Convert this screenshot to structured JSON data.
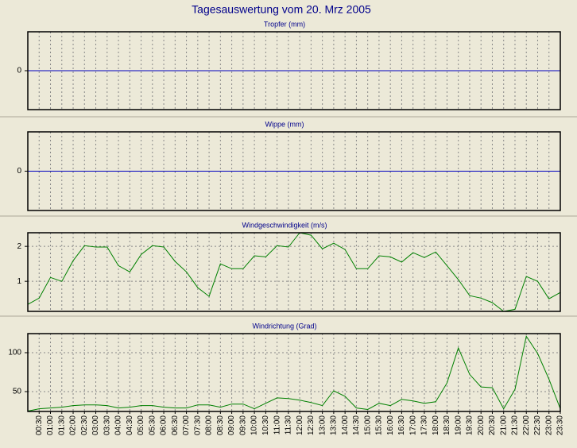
{
  "title": "Tagesauswertung vom 20. Mrz 2005",
  "chart_data": [
    {
      "type": "line",
      "title": "Tropfer (mm)",
      "color": "#0000c0",
      "ylim": [
        -1,
        1
      ],
      "yticks": [
        0
      ],
      "values": [
        0,
        0,
        0,
        0,
        0,
        0,
        0,
        0,
        0,
        0,
        0,
        0,
        0,
        0,
        0,
        0,
        0,
        0,
        0,
        0,
        0,
        0,
        0,
        0,
        0,
        0,
        0,
        0,
        0,
        0,
        0,
        0,
        0,
        0,
        0,
        0,
        0,
        0,
        0,
        0,
        0,
        0,
        0,
        0,
        0,
        0,
        0,
        0
      ]
    },
    {
      "type": "line",
      "title": "Wippe (mm)",
      "color": "#0000c0",
      "ylim": [
        -1,
        1
      ],
      "yticks": [
        0
      ],
      "values": [
        0,
        0,
        0,
        0,
        0,
        0,
        0,
        0,
        0,
        0,
        0,
        0,
        0,
        0,
        0,
        0,
        0,
        0,
        0,
        0,
        0,
        0,
        0,
        0,
        0,
        0,
        0,
        0,
        0,
        0,
        0,
        0,
        0,
        0,
        0,
        0,
        0,
        0,
        0,
        0,
        0,
        0,
        0,
        0,
        0,
        0,
        0,
        0
      ]
    },
    {
      "type": "line",
      "title": "Windgeschwindigkeit (m/s)",
      "color": "#008000",
      "ylim": [
        0.14,
        2.39
      ],
      "yticks": [
        1,
        2
      ],
      "values": [
        0.34,
        0.52,
        1.11,
        1.0,
        1.59,
        2.02,
        1.98,
        1.98,
        1.45,
        1.27,
        1.77,
        2.02,
        1.98,
        1.57,
        1.27,
        0.82,
        0.57,
        1.5,
        1.36,
        1.36,
        1.73,
        1.7,
        2.02,
        1.98,
        2.39,
        2.32,
        1.93,
        2.09,
        1.91,
        1.36,
        1.36,
        1.73,
        1.7,
        1.55,
        1.82,
        1.68,
        1.84,
        1.45,
        1.05,
        0.59,
        0.52,
        0.39,
        0.14,
        0.2,
        1.14,
        1.0,
        0.5,
        0.68
      ]
    },
    {
      "type": "line",
      "title": "Windrichtung (Grad)",
      "color": "#008000",
      "ylim": [
        24.5,
        124.5
      ],
      "yticks": [
        50,
        100
      ],
      "values": [
        25,
        28,
        29,
        30,
        32,
        33,
        33,
        32,
        29,
        30,
        32,
        32,
        30,
        29,
        29,
        33,
        33,
        30,
        34,
        34,
        28,
        35,
        42,
        41,
        39,
        36,
        32,
        51,
        44,
        29,
        27,
        35,
        32,
        40,
        38,
        35,
        37,
        61,
        106,
        72,
        56,
        55,
        28,
        53,
        121,
        99,
        66,
        28
      ],
      "categories": [
        null,
        "00:30",
        "01:00",
        "01:30",
        "02:00",
        "02:30",
        "03:00",
        "03:30",
        "04:00",
        "04:30",
        "05:00",
        "05:30",
        "06:00",
        "06:30",
        "07:00",
        "07:30",
        "08:00",
        "08:30",
        "09:00",
        "09:30",
        "10:00",
        "10:30",
        "11:00",
        "11:30",
        "12:00",
        "12:30",
        "13:00",
        "13:30",
        "14:00",
        "14:30",
        "15:00",
        "15:30",
        "16:00",
        "16:30",
        "17:00",
        "17:30",
        "18:00",
        "18:30",
        "19:00",
        "19:30",
        "20:00",
        "20:30",
        "21:00",
        "21:30",
        "22:00",
        "22:30",
        "23:00",
        "23:30"
      ]
    }
  ]
}
